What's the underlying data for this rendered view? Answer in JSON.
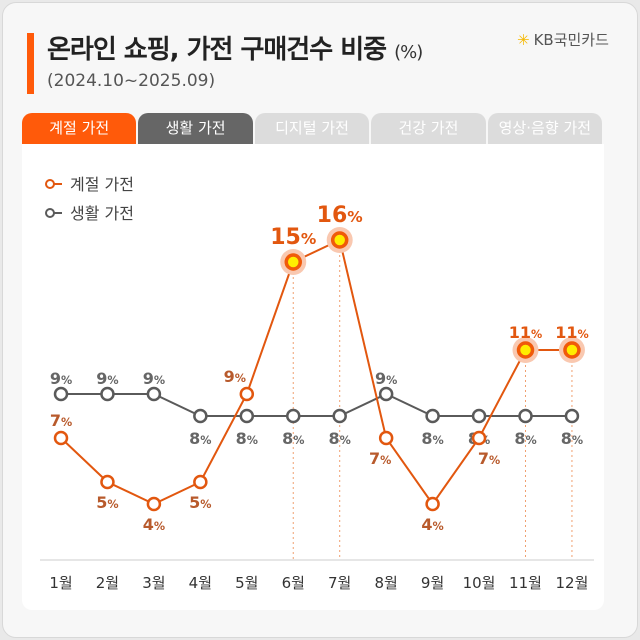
{
  "header": {
    "title": "온라인 쇼핑, 가전 구매건수 비중",
    "unit": "(%)",
    "subtitle": "(2024.10~2025.09)",
    "logo": "KB국민카드"
  },
  "tabs": [
    "계절 가전",
    "생활 가전",
    "디지털 가전",
    "건강 가전",
    "영상·음향 가전"
  ],
  "chart_data": {
    "type": "line",
    "categories": [
      "1월",
      "2월",
      "3월",
      "4월",
      "5월",
      "6월",
      "7월",
      "8월",
      "9월",
      "10월",
      "11월",
      "12월"
    ],
    "series": [
      {
        "name": "계절 가전",
        "color": "#e2570f",
        "values": [
          7,
          5,
          4,
          5,
          9,
          15,
          16,
          7,
          4,
          7,
          11,
          11
        ],
        "highlight": [
          5,
          6,
          10,
          11
        ]
      },
      {
        "name": "생활 가전",
        "color": "#5a5a5a",
        "values": [
          9,
          9,
          9,
          8,
          8,
          8,
          8,
          9,
          8,
          8,
          8,
          8
        ]
      }
    ],
    "value_suffix": "%",
    "grid": false,
    "legend": "top-left"
  }
}
